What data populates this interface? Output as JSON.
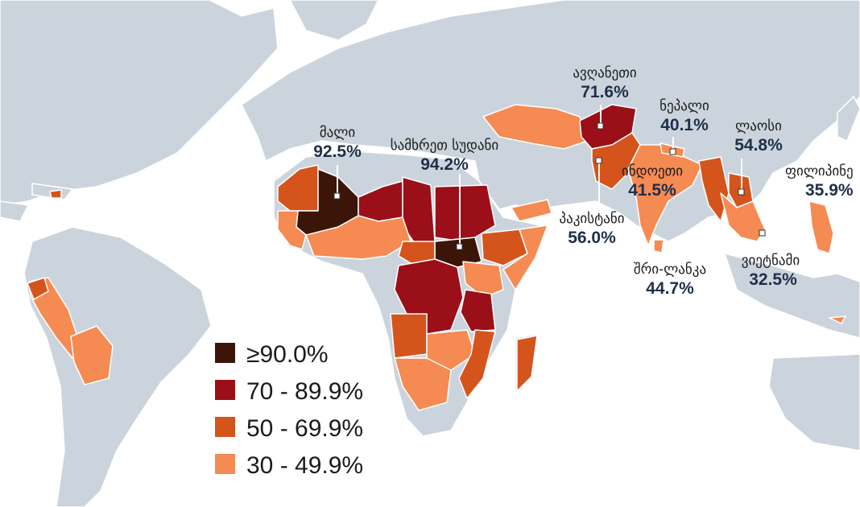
{
  "colors": {
    "ocean": "#ffffff",
    "land": "#cbd4dc",
    "cat_90": "#3b1508",
    "cat_70": "#9b0f18",
    "cat_50": "#d4541c",
    "cat_30": "#f58a52"
  },
  "legend": [
    {
      "label": "≥90.0%",
      "color_key": "cat_90"
    },
    {
      "label": "70 - 89.9%",
      "color_key": "cat_70"
    },
    {
      "label": "50 - 69.9%",
      "color_key": "cat_50"
    },
    {
      "label": "30 - 49.9%",
      "color_key": "cat_30"
    }
  ],
  "countries": [
    {
      "name": "მალი",
      "value": "92.5%"
    },
    {
      "name": "სამხრეთ სუდანი",
      "value": "94.2%"
    },
    {
      "name": "ავღანეთი",
      "value": "71.6%"
    },
    {
      "name": "ნეპალი",
      "value": "40.1%"
    },
    {
      "name": "ლაოსი",
      "value": "54.8%"
    },
    {
      "name": "ფილიპინე",
      "value": "35.9%"
    },
    {
      "name": "ინდოეთი",
      "value": "41.5%"
    },
    {
      "name": "პაკისტანი",
      "value": "56.0%"
    },
    {
      "name": "შრი-ლანკა",
      "value": "44.7%"
    },
    {
      "name": "ვიეტნამი",
      "value": "32.5%"
    }
  ]
}
